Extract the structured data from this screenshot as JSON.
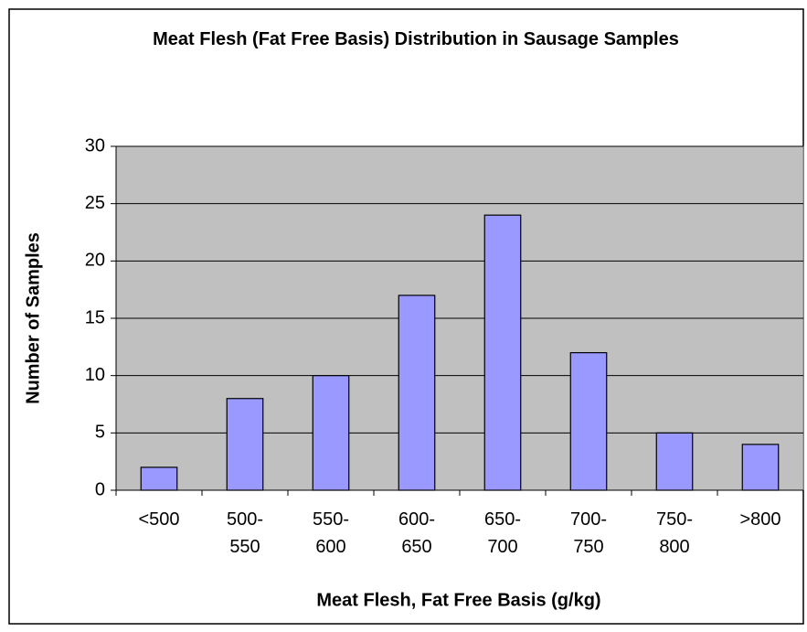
{
  "chart_data": {
    "type": "bar",
    "title": "Meat Flesh (Fat Free Basis) Distribution in Sausage Samples",
    "x_label": "Meat Flesh, Fat Free Basis (g/kg)",
    "y_label": "Number of Samples",
    "categories": [
      "<500",
      "500-550",
      "550-600",
      "600-650",
      "650-700",
      "700-750",
      "750-800",
      ">800"
    ],
    "values": [
      2,
      8,
      10,
      17,
      24,
      12,
      5,
      4
    ],
    "color": "#9999ff",
    "ylim": [
      0,
      30
    ],
    "yticks": [
      0,
      5,
      10,
      15,
      20,
      25,
      30
    ],
    "grid": true
  }
}
